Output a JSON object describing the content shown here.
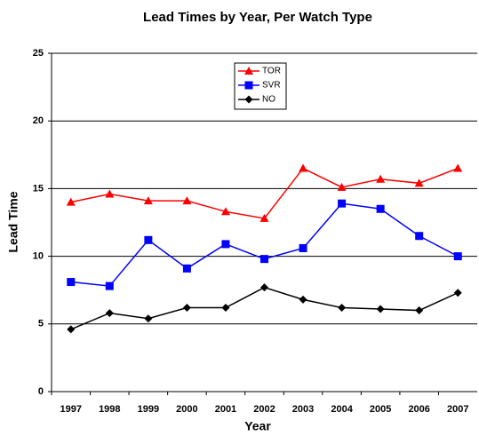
{
  "chart_data": {
    "type": "line",
    "title": "Lead Times by Year, Per Watch Type",
    "x_label": "Year",
    "y_label": "Lead Time",
    "categories": [
      "1997",
      "1998",
      "1999",
      "2000",
      "2001",
      "2002",
      "2003",
      "2004",
      "2005",
      "2006",
      "2007"
    ],
    "series": [
      {
        "name": "TOR",
        "color": "#ff0000",
        "marker": "triangle",
        "values": [
          14.0,
          14.6,
          14.1,
          14.1,
          13.3,
          12.8,
          16.5,
          15.1,
          15.7,
          15.4,
          16.5
        ]
      },
      {
        "name": "SVR",
        "color": "#0000ff",
        "marker": "square",
        "values": [
          8.1,
          7.8,
          11.2,
          9.1,
          10.9,
          9.8,
          10.6,
          13.9,
          13.5,
          11.5,
          10.0
        ]
      },
      {
        "name": "NO",
        "color": "#000000",
        "marker": "diamond",
        "values": [
          4.6,
          5.8,
          5.4,
          6.2,
          6.2,
          7.7,
          6.8,
          6.2,
          6.1,
          6.0,
          7.3
        ]
      }
    ],
    "ylim": [
      0,
      25
    ],
    "yticks": [
      0,
      5,
      10,
      15,
      20,
      25
    ],
    "grid": true
  }
}
